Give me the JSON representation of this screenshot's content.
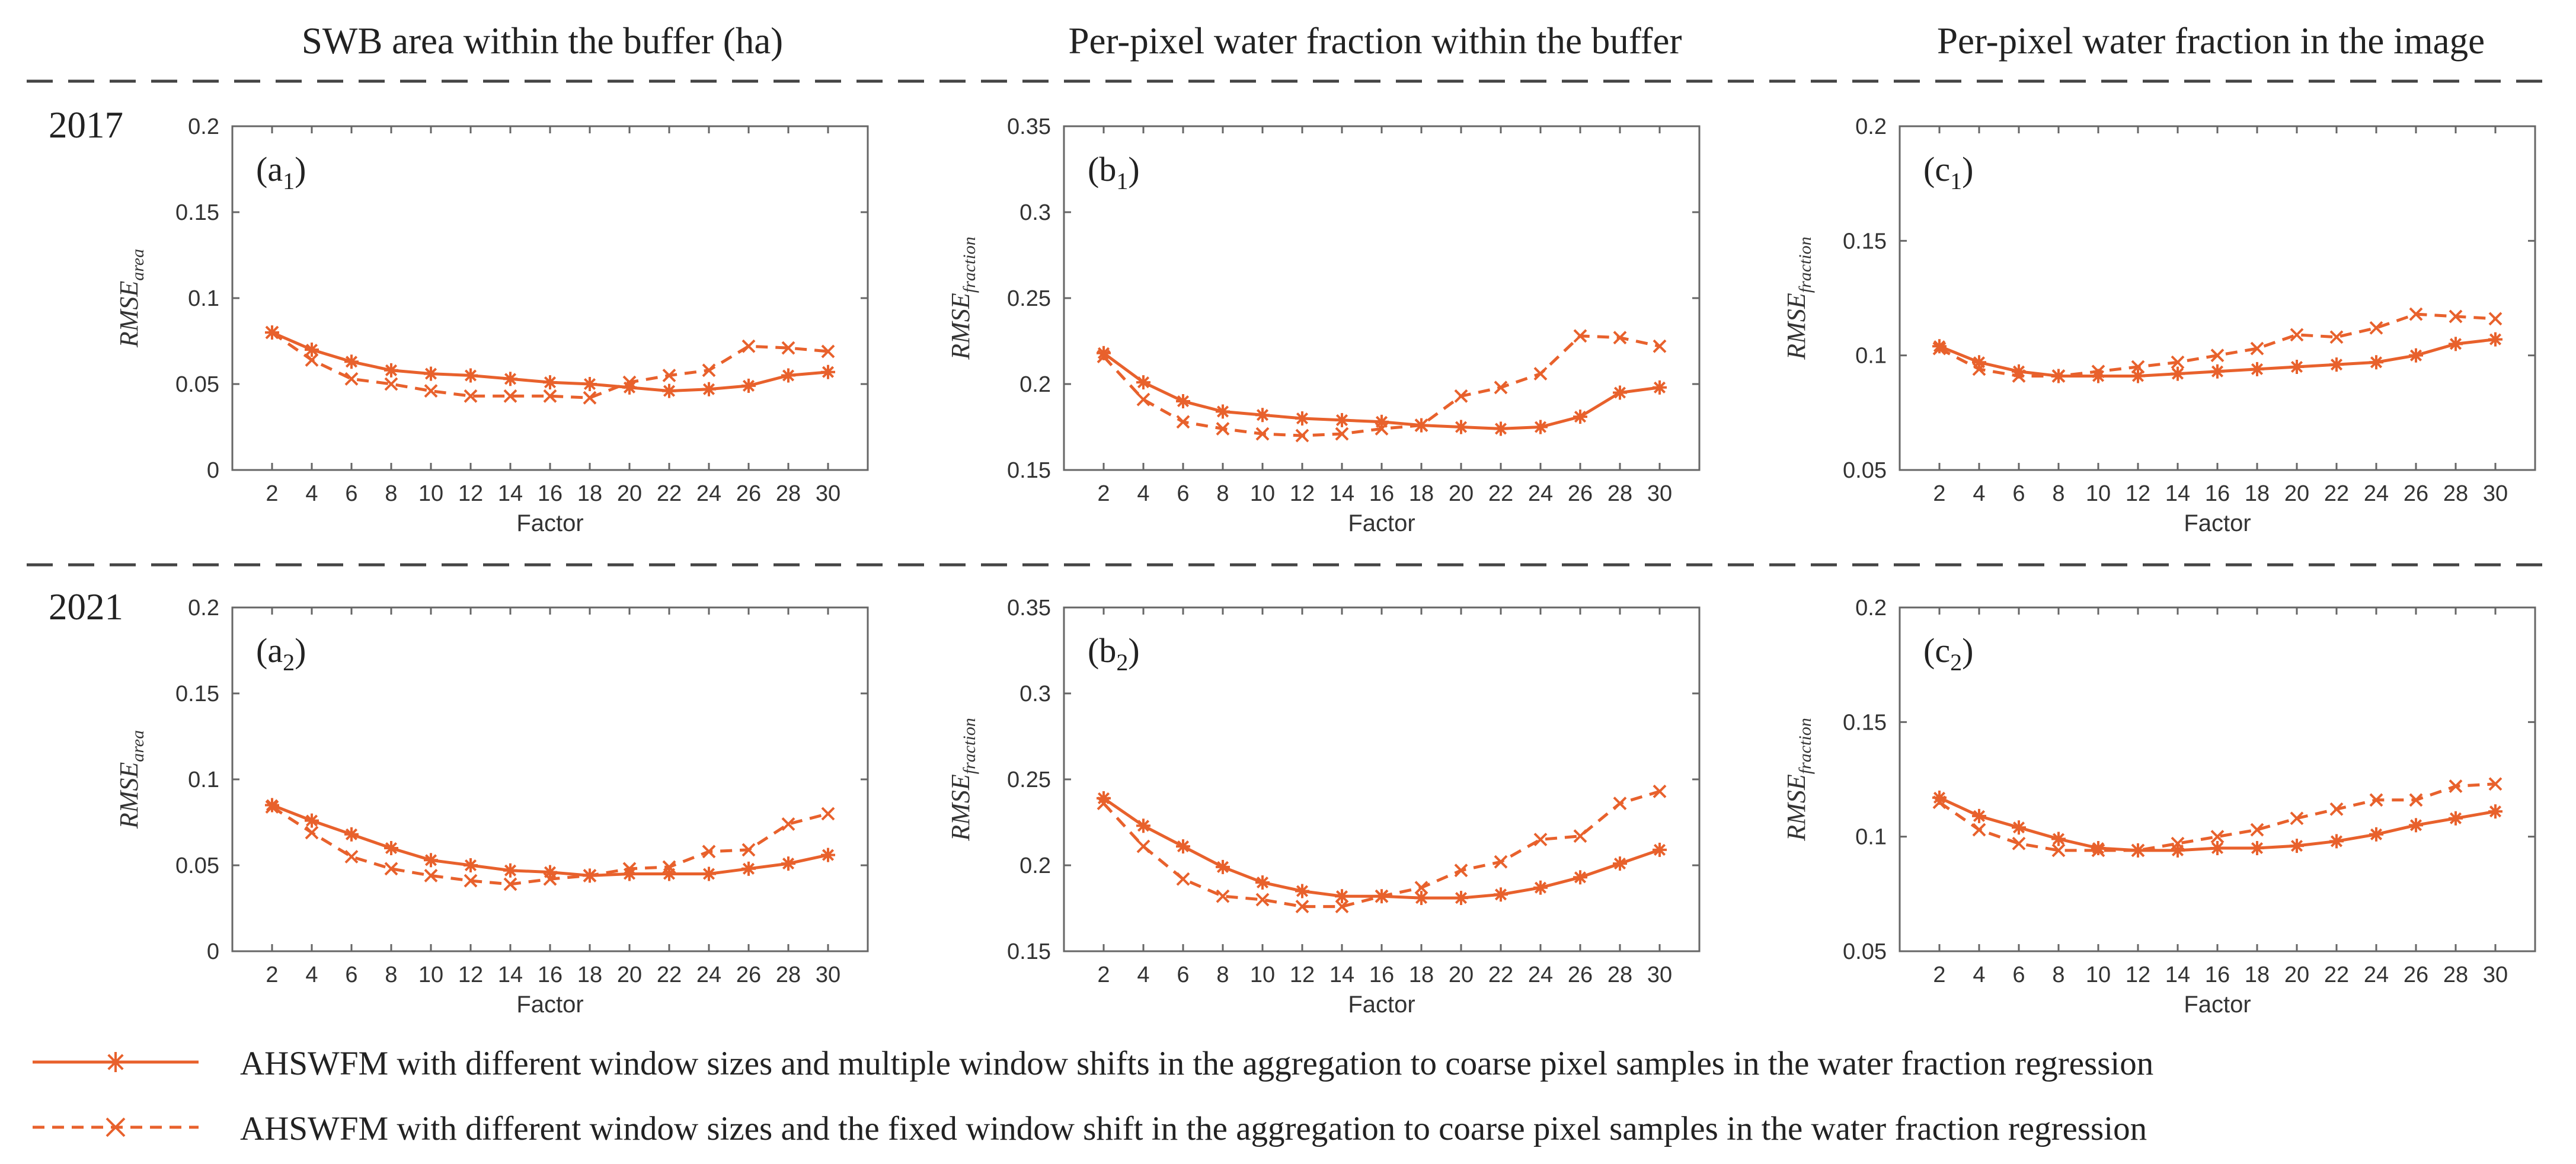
{
  "colors": {
    "series": "#E8612C",
    "axis": "#666666",
    "text": "#222222"
  },
  "column_titles": [
    "SWB area within the buffer (ha)",
    "Per-pixel water fraction within the buffer",
    "Per-pixel water fraction in the image"
  ],
  "row_labels": [
    "2017",
    "2021"
  ],
  "legend": [
    {
      "marker": "star",
      "style": "solid",
      "label": "AHSWFM with different window sizes and multiple window shifts in the aggregation to coarse pixel samples in the water fraction regression"
    },
    {
      "marker": "x",
      "style": "dashed",
      "label": "AHSWFM with different window sizes and the fixed window shift in the aggregation to coarse pixel samples in the water fraction regression"
    }
  ],
  "chart_data": [
    {
      "type": "line",
      "panel": "(a1)",
      "panel_main": "(a",
      "panel_sub": "1",
      "panel_close": ")",
      "xlabel": "Factor",
      "ylabel_main": "RMSE",
      "ylabel_sub": "area",
      "x": [
        2,
        4,
        6,
        8,
        10,
        12,
        14,
        16,
        18,
        20,
        22,
        24,
        26,
        28,
        30
      ],
      "ylim": [
        0,
        0.2
      ],
      "yticks": [
        0,
        0.05,
        0.1,
        0.15,
        0.2
      ],
      "ytick_labels": [
        "0",
        "0.05",
        "0.1",
        "0.15",
        "0.2"
      ],
      "series": [
        {
          "name": "multiple window shifts",
          "marker": "star",
          "values": [
            0.08,
            0.07,
            0.063,
            0.058,
            0.056,
            0.055,
            0.053,
            0.051,
            0.05,
            0.048,
            0.046,
            0.047,
            0.049,
            0.055,
            0.057
          ]
        },
        {
          "name": "fixed window shift",
          "marker": "x",
          "values": [
            0.08,
            0.064,
            0.053,
            0.05,
            0.046,
            0.043,
            0.043,
            0.043,
            0.042,
            0.051,
            0.055,
            0.058,
            0.072,
            0.071,
            0.069
          ]
        }
      ]
    },
    {
      "type": "line",
      "panel": "(b1)",
      "panel_main": "(b",
      "panel_sub": "1",
      "panel_close": ")",
      "xlabel": "Factor",
      "ylabel_main": "RMSE",
      "ylabel_sub": "fraction",
      "x": [
        2,
        4,
        6,
        8,
        10,
        12,
        14,
        16,
        18,
        20,
        22,
        24,
        26,
        28,
        30
      ],
      "ylim": [
        0.15,
        0.35
      ],
      "yticks": [
        0.15,
        0.2,
        0.25,
        0.3,
        0.35
      ],
      "ytick_labels": [
        "0.15",
        "0.2",
        "0.25",
        "0.3",
        "0.35"
      ],
      "series": [
        {
          "name": "multiple window shifts",
          "marker": "star",
          "values": [
            0.218,
            0.201,
            0.19,
            0.184,
            0.182,
            0.18,
            0.179,
            0.178,
            0.176,
            0.175,
            0.174,
            0.175,
            0.181,
            0.195,
            0.198
          ]
        },
        {
          "name": "fixed window shift",
          "marker": "x",
          "values": [
            0.216,
            0.191,
            0.178,
            0.174,
            0.171,
            0.17,
            0.171,
            0.174,
            0.176,
            0.193,
            0.198,
            0.206,
            0.228,
            0.227,
            0.222
          ]
        }
      ]
    },
    {
      "type": "line",
      "panel": "(c1)",
      "panel_main": "(c",
      "panel_sub": "1",
      "panel_close": ")",
      "xlabel": "Factor",
      "ylabel_main": "RMSE",
      "ylabel_sub": "fraction",
      "x": [
        2,
        4,
        6,
        8,
        10,
        12,
        14,
        16,
        18,
        20,
        22,
        24,
        26,
        28,
        30
      ],
      "ylim": [
        0.05,
        0.2
      ],
      "yticks": [
        0.05,
        0.1,
        0.15,
        0.2
      ],
      "ytick_labels": [
        "0.05",
        "0.1",
        "0.15",
        "0.2"
      ],
      "series": [
        {
          "name": "multiple window shifts",
          "marker": "star",
          "values": [
            0.104,
            0.097,
            0.093,
            0.091,
            0.091,
            0.091,
            0.092,
            0.093,
            0.094,
            0.095,
            0.096,
            0.097,
            0.1,
            0.105,
            0.107
          ]
        },
        {
          "name": "fixed window shift",
          "marker": "x",
          "values": [
            0.103,
            0.094,
            0.091,
            0.091,
            0.093,
            0.095,
            0.097,
            0.1,
            0.103,
            0.109,
            0.108,
            0.112,
            0.118,
            0.117,
            0.116
          ]
        }
      ]
    },
    {
      "type": "line",
      "panel": "(a2)",
      "panel_main": "(a",
      "panel_sub": "2",
      "panel_close": ")",
      "xlabel": "Factor",
      "ylabel_main": "RMSE",
      "ylabel_sub": "area",
      "x": [
        2,
        4,
        6,
        8,
        10,
        12,
        14,
        16,
        18,
        20,
        22,
        24,
        26,
        28,
        30
      ],
      "ylim": [
        0,
        0.2
      ],
      "yticks": [
        0,
        0.05,
        0.1,
        0.15,
        0.2
      ],
      "ytick_labels": [
        "0",
        "0.05",
        "0.1",
        "0.15",
        "0.2"
      ],
      "series": [
        {
          "name": "multiple window shifts",
          "marker": "star",
          "values": [
            0.085,
            0.076,
            0.068,
            0.06,
            0.053,
            0.05,
            0.047,
            0.046,
            0.044,
            0.045,
            0.045,
            0.045,
            0.048,
            0.051,
            0.056
          ]
        },
        {
          "name": "fixed window shift",
          "marker": "x",
          "values": [
            0.084,
            0.069,
            0.055,
            0.048,
            0.044,
            0.041,
            0.039,
            0.042,
            0.044,
            0.048,
            0.049,
            0.058,
            0.059,
            0.074,
            0.08
          ]
        }
      ]
    },
    {
      "type": "line",
      "panel": "(b2)",
      "panel_main": "(b",
      "panel_sub": "2",
      "panel_close": ")",
      "xlabel": "Factor",
      "ylabel_main": "RMSE",
      "ylabel_sub": "fraction",
      "x": [
        2,
        4,
        6,
        8,
        10,
        12,
        14,
        16,
        18,
        20,
        22,
        24,
        26,
        28,
        30
      ],
      "ylim": [
        0.15,
        0.35
      ],
      "yticks": [
        0.15,
        0.2,
        0.25,
        0.3,
        0.35
      ],
      "ytick_labels": [
        "0.15",
        "0.2",
        "0.25",
        "0.3",
        "0.35"
      ],
      "series": [
        {
          "name": "multiple window shifts",
          "marker": "star",
          "values": [
            0.239,
            0.223,
            0.211,
            0.199,
            0.19,
            0.185,
            0.182,
            0.182,
            0.181,
            0.181,
            0.183,
            0.187,
            0.193,
            0.201,
            0.209
          ]
        },
        {
          "name": "fixed window shift",
          "marker": "x",
          "values": [
            0.236,
            0.211,
            0.192,
            0.182,
            0.18,
            0.176,
            0.176,
            0.182,
            0.187,
            0.197,
            0.202,
            0.215,
            0.217,
            0.236,
            0.243
          ]
        }
      ]
    },
    {
      "type": "line",
      "panel": "(c2)",
      "panel_main": "(c",
      "panel_sub": "2",
      "panel_close": ")",
      "xlabel": "Factor",
      "ylabel_main": "RMSE",
      "ylabel_sub": "fraction",
      "x": [
        2,
        4,
        6,
        8,
        10,
        12,
        14,
        16,
        18,
        20,
        22,
        24,
        26,
        28,
        30
      ],
      "ylim": [
        0.05,
        0.2
      ],
      "yticks": [
        0.05,
        0.1,
        0.15,
        0.2
      ],
      "ytick_labels": [
        "0.05",
        "0.1",
        "0.15",
        "0.2"
      ],
      "series": [
        {
          "name": "multiple window shifts",
          "marker": "star",
          "values": [
            0.117,
            0.109,
            0.104,
            0.099,
            0.095,
            0.094,
            0.094,
            0.095,
            0.095,
            0.096,
            0.098,
            0.101,
            0.105,
            0.108,
            0.111
          ]
        },
        {
          "name": "fixed window shift",
          "marker": "x",
          "values": [
            0.115,
            0.103,
            0.097,
            0.094,
            0.094,
            0.094,
            0.097,
            0.1,
            0.103,
            0.108,
            0.112,
            0.116,
            0.116,
            0.122,
            0.123
          ]
        }
      ]
    }
  ]
}
